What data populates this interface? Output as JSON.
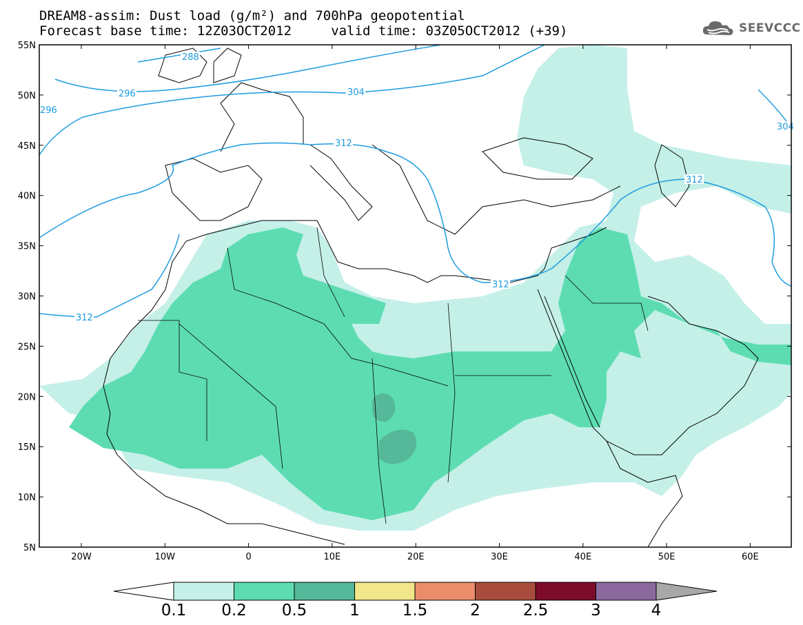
{
  "title": {
    "line1": "DREAM8-assim: Dust load (g/m²) and 700hPa geopotential",
    "line2": "Forecast base time: 12Z03OCT2012     valid time: 03Z05OCT2012 (+39)"
  },
  "logo": {
    "text": "SEEVCCC",
    "icon": "cloud-icon"
  },
  "colors": {
    "c1": "#c4f0e8",
    "c2": "#5ddcb2",
    "c3": "#55b899",
    "c4": "#f2e68a",
    "c5": "#e98d6b",
    "c6": "#a84d3d",
    "c7": "#7c0c2a",
    "c8": "#8b699e",
    "below": "#ffffff",
    "above": "#a8a8a8",
    "contour": "#1e9bde",
    "coast": "#000000",
    "grid": "#cccccc"
  },
  "axes": {
    "lat_labels": [
      "55N",
      "50N",
      "45N",
      "40N",
      "35N",
      "30N",
      "25N",
      "20N",
      "15N",
      "10N",
      "5N"
    ],
    "lon_labels": [
      "20W",
      "10W",
      "0",
      "10E",
      "20E",
      "30E",
      "40E",
      "50E",
      "60E"
    ]
  },
  "contour_labels": [
    "288",
    "296",
    "304",
    "312",
    "312",
    "312",
    "312",
    "304",
    "296"
  ],
  "colorbar": {
    "labels": [
      "0.1",
      "0.2",
      "0.5",
      "1",
      "1.5",
      "2",
      "2.5",
      "3",
      "4"
    ]
  }
}
